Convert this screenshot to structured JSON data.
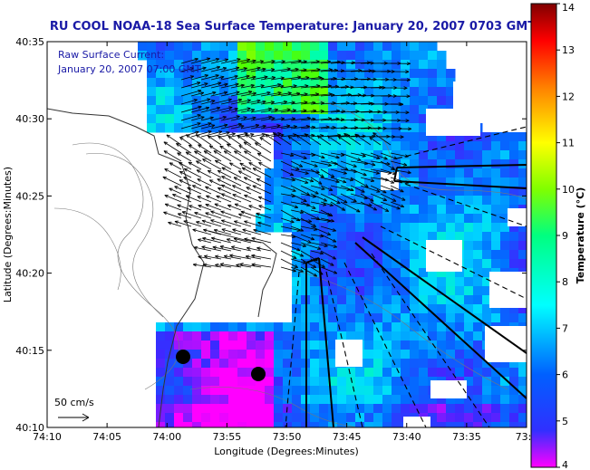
{
  "chart_data": {
    "type": "heatmap",
    "title": "RU COOL  NOAA-18  Sea Surface Temperature:  January 20, 2007 0703 GMT",
    "xlabel": "Longitude (Degrees:Minutes)",
    "ylabel": "Latitude (Degrees:Minutes)",
    "x_ticks": [
      "74:10",
      "74:05",
      "74:00",
      "73:55",
      "73:50",
      "73:45",
      "73:40",
      "73:35",
      "73:3"
    ],
    "y_ticks": [
      "40:35",
      "40:30",
      "40:25",
      "40:20",
      "40:15",
      "40:10"
    ],
    "xlim_minutes_west": [
      10,
      30
    ],
    "ylim_minutes_north": [
      10,
      35
    ],
    "annotation_lines": [
      "Raw Surface Current:",
      "January 20, 2007 07:00 GMT"
    ],
    "scale_label": "50 cm/s",
    "colorbar": {
      "label": "Temperature (°C)",
      "ticks": [
        "4",
        "5",
        "6",
        "7",
        "8",
        "9",
        "10",
        "11",
        "12",
        "13",
        "14"
      ],
      "min": 4,
      "max": 14,
      "colors": [
        "#ff00ff",
        "#2020ff",
        "#00ffff",
        "#00ff00",
        "#ffff00",
        "#ff0000",
        "#800000"
      ]
    },
    "grid": false,
    "current_vectors": "raw surface current arrows over the Hudson/Raritan outflow region",
    "missing_data_color": "#ffffff"
  }
}
